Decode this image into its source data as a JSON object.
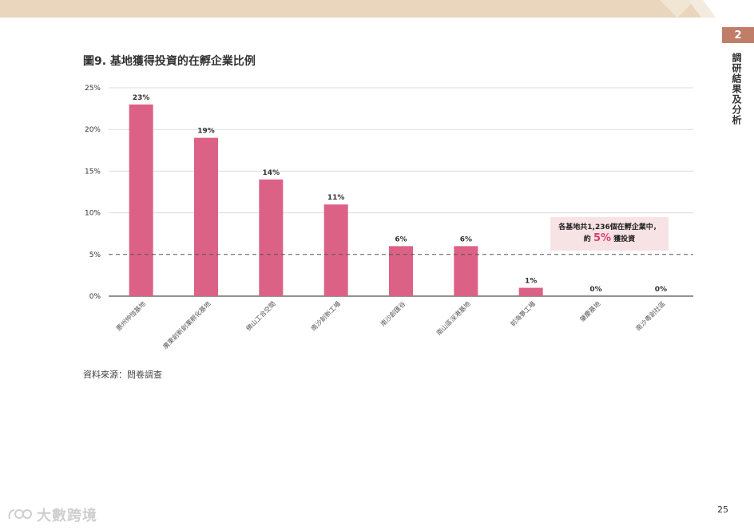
{
  "header": {
    "chapter_number": "2",
    "chapter_title": "調研結果及分析"
  },
  "figure_title": "圖9. 基地獲得投資的在孵企業比例",
  "source": "資料來源：問卷調查",
  "page_number": "25",
  "watermark": {
    "text": "大數跨境",
    "icon": "brand-logo-icon"
  },
  "annotation": {
    "line1": "各基地共1,236個在孵企業中，",
    "line2_prefix": "約",
    "highlight": "5%",
    "line2_suffix": "獲投資"
  },
  "chart_data": {
    "type": "bar",
    "categories": [
      "惠州仲愷基地",
      "廣東創新創業孵化基地",
      "佛山工合空間",
      "南沙創新工場",
      "南沙創匯谷",
      "南山區深港基地",
      "前海夢工場",
      "肇慶基地",
      "南沙粵創社區"
    ],
    "values": [
      23,
      19,
      14,
      11,
      6,
      6,
      1,
      0,
      0
    ],
    "data_labels": [
      "23%",
      "19%",
      "14%",
      "11%",
      "6%",
      "6%",
      "1%",
      "0%",
      "0%"
    ],
    "y_ticks": [
      "0%",
      "5%",
      "10%",
      "15%",
      "20%",
      "25%"
    ],
    "y_tick_values": [
      0,
      5,
      10,
      15,
      20,
      25
    ],
    "ylim": [
      0,
      25
    ],
    "reference_line": 5,
    "bar_color": "#dc6186",
    "grid": true
  }
}
